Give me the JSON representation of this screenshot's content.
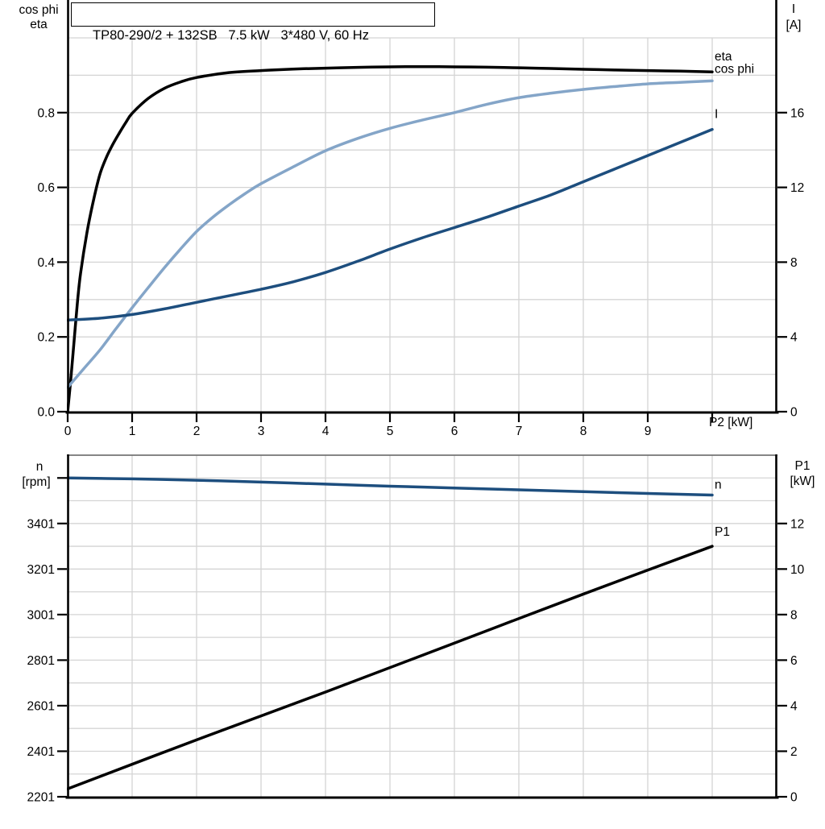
{
  "title_box": {
    "text": "TP80-290/2 + 132SB   7.5 kW   3*480 V, 60 Hz"
  },
  "colors": {
    "background": "#ffffff",
    "axis": "#000000",
    "grid": "#d4d4d4",
    "chart_top_border": "#5f5f5f",
    "curve_black": "#000000",
    "curve_dark_blue": "#1d4e7e",
    "curve_light_blue": "#84a5c8"
  },
  "chart_data": [
    {
      "id": "motor-efficiency-current-chart",
      "type": "line",
      "title": "TP80-290/2 + 132SB   7.5 kW   3*480 V, 60 Hz",
      "x_axis": {
        "title": "P2 [kW]",
        "min": 0,
        "max": 11,
        "grid_step": 1,
        "tick_values": [
          0,
          1,
          2,
          3,
          4,
          5,
          6,
          7,
          8,
          9,
          10
        ],
        "tick_labels": [
          "0",
          "1",
          "2",
          "3",
          "4",
          "5",
          "6",
          "7",
          "8",
          "9",
          ""
        ]
      },
      "y_left_axis": {
        "title_lines": [
          "cos phi",
          "eta"
        ],
        "min": 0,
        "max": 1,
        "grid_step": 0.1,
        "tick_values": [
          0,
          0.2,
          0.4,
          0.6,
          0.8
        ],
        "tick_labels": [
          "0.0",
          "0.2",
          "0.4",
          "0.6",
          "0.8"
        ],
        "extra_tick_values": []
      },
      "y_right_axis": {
        "title_lines": [
          "I",
          "[A]"
        ],
        "min": 0,
        "max": 20,
        "tick_values": [
          0,
          4,
          8,
          12,
          16
        ],
        "tick_labels": [
          "0",
          "4",
          "8",
          "12",
          "16"
        ]
      },
      "series": [
        {
          "name": "eta",
          "axis": "left",
          "color_key": "curve_black",
          "x": [
            0,
            0.05,
            0.1,
            0.15,
            0.2,
            0.3,
            0.4,
            0.5,
            0.6,
            0.7,
            0.8,
            0.9,
            1.0,
            1.25,
            1.5,
            1.75,
            2.0,
            2.5,
            3.0,
            3.5,
            4.0,
            4.5,
            5.0,
            5.5,
            6.0,
            6.5,
            7.0,
            7.5,
            8.0,
            8.5,
            9.0,
            9.5,
            10.0
          ],
          "y": [
            0,
            0.09,
            0.19,
            0.29,
            0.37,
            0.48,
            0.565,
            0.635,
            0.68,
            0.715,
            0.745,
            0.773,
            0.798,
            0.838,
            0.865,
            0.882,
            0.894,
            0.907,
            0.9125,
            0.9165,
            0.919,
            0.921,
            0.9225,
            0.923,
            0.9225,
            0.9215,
            0.92,
            0.918,
            0.916,
            0.914,
            0.9125,
            0.911,
            0.909
          ]
        },
        {
          "name": "cos phi",
          "axis": "left",
          "color_key": "curve_light_blue",
          "x": [
            0,
            0.25,
            0.5,
            0.75,
            1.0,
            1.25,
            1.5,
            1.75,
            2.0,
            2.25,
            2.5,
            2.75,
            3.0,
            3.5,
            4.0,
            4.5,
            5.0,
            5.5,
            6.0,
            6.5,
            7.0,
            7.5,
            8.0,
            8.5,
            9.0,
            9.5,
            10.0
          ],
          "y": [
            0.065,
            0.115,
            0.165,
            0.222,
            0.278,
            0.332,
            0.385,
            0.435,
            0.482,
            0.52,
            0.553,
            0.583,
            0.61,
            0.655,
            0.698,
            0.731,
            0.758,
            0.78,
            0.8,
            0.822,
            0.84,
            0.852,
            0.862,
            0.87,
            0.877,
            0.881,
            0.885
          ]
        },
        {
          "name": "I",
          "axis": "right",
          "color_key": "curve_dark_blue",
          "x": [
            0,
            0.5,
            1,
            1.5,
            2,
            2.5,
            3,
            3.5,
            4,
            4.5,
            5,
            5.5,
            6,
            6.5,
            7,
            7.5,
            8,
            8.5,
            9,
            9.5,
            10
          ],
          "y": [
            4.9,
            5.0,
            5.2,
            5.5,
            5.85,
            6.2,
            6.55,
            6.95,
            7.45,
            8.05,
            8.7,
            9.3,
            9.85,
            10.4,
            11.0,
            11.6,
            12.3,
            13.0,
            13.7,
            14.4,
            15.1
          ]
        }
      ]
    },
    {
      "id": "speed-power-chart",
      "type": "line",
      "x_axis": {
        "title": "",
        "min": 0,
        "max": 11,
        "grid_step": 1,
        "tick_values": [],
        "tick_labels": []
      },
      "y_left_axis": {
        "title_lines": [
          "n",
          "[rpm]"
        ],
        "min": 2201,
        "max": 3701,
        "grid_step": 100,
        "tick_values": [
          2201,
          2401,
          2601,
          2801,
          3001,
          3201,
          3401
        ],
        "tick_labels": [
          "2201",
          "2401",
          "2601",
          "2801",
          "3001",
          "3201",
          "3401"
        ],
        "extra_tick_values": [
          3601
        ]
      },
      "y_right_axis": {
        "title_lines": [
          "P1",
          "[kW]"
        ],
        "min": 0,
        "max": 15,
        "tick_values": [
          0,
          2,
          4,
          6,
          8,
          10,
          12
        ],
        "tick_labels": [
          "0",
          "2",
          "4",
          "6",
          "8",
          "10",
          "12"
        ]
      },
      "series": [
        {
          "name": "n",
          "axis": "left",
          "color_key": "curve_dark_blue",
          "x": [
            0,
            1,
            2,
            3,
            4,
            5,
            6,
            7,
            8,
            9,
            10
          ],
          "y": [
            3601,
            3597,
            3591,
            3583,
            3574,
            3565,
            3557,
            3549,
            3541,
            3533,
            3526
          ]
        },
        {
          "name": "P1",
          "axis": "right",
          "color_key": "curve_black",
          "x": [
            0,
            2,
            4,
            6,
            8,
            10
          ],
          "y": [
            0.35,
            2.5,
            4.6,
            6.75,
            8.9,
            11.0
          ]
        }
      ]
    }
  ]
}
